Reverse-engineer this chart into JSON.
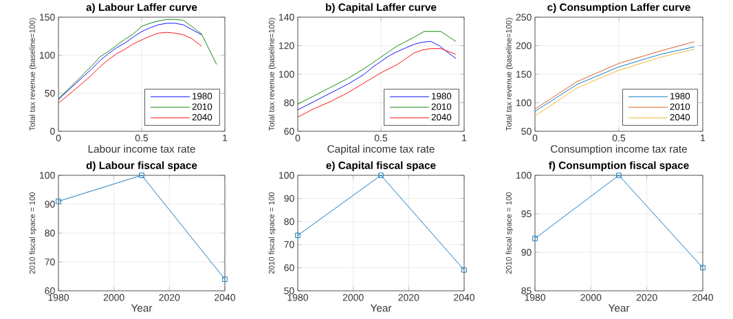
{
  "chart_data": [
    {
      "type": "line",
      "title": "a) Labour Laffer curve",
      "xlabel": "Labour income tax rate",
      "ylabel": "Total tax revenue (baseline=100)",
      "xlim": [
        0,
        1
      ],
      "ylim": [
        0,
        150
      ],
      "xticks": [
        0,
        0.5,
        1
      ],
      "yticks": [
        0,
        50,
        100,
        150
      ],
      "grid": true,
      "legend": "bottom right",
      "series": [
        {
          "name": "1980",
          "color": "#0000ff",
          "x": [
            0,
            0.1,
            0.2,
            0.25,
            0.3,
            0.35,
            0.4,
            0.45,
            0.5,
            0.55,
            0.6,
            0.65,
            0.7,
            0.75,
            0.8,
            0.86
          ],
          "values": [
            42,
            62,
            82,
            93,
            102,
            110,
            116,
            124,
            131,
            136,
            140,
            142,
            142,
            140,
            134,
            127
          ]
        },
        {
          "name": "2010",
          "color": "#008000",
          "x": [
            0,
            0.1,
            0.2,
            0.25,
            0.3,
            0.35,
            0.4,
            0.45,
            0.5,
            0.55,
            0.6,
            0.65,
            0.7,
            0.75,
            0.8,
            0.86,
            0.95
          ],
          "values": [
            43,
            64,
            86,
            98,
            105,
            113,
            121,
            128,
            138,
            142,
            145,
            147,
            147,
            146,
            138,
            128,
            88
          ]
        },
        {
          "name": "2040",
          "color": "#ff0000",
          "x": [
            0,
            0.1,
            0.2,
            0.25,
            0.3,
            0.35,
            0.4,
            0.45,
            0.5,
            0.55,
            0.6,
            0.65,
            0.7,
            0.75,
            0.8,
            0.86
          ],
          "values": [
            37,
            55,
            74,
            85,
            94,
            102,
            108,
            115,
            120,
            125,
            129,
            130,
            129,
            127,
            122,
            112
          ]
        }
      ]
    },
    {
      "type": "line",
      "title": "b) Capital Laffer curve",
      "xlabel": "Capital income tax rate",
      "ylabel": "Total tax revenue (baseline=100)",
      "xlim": [
        0,
        1
      ],
      "ylim": [
        60,
        140
      ],
      "xticks": [
        0,
        0.5,
        1
      ],
      "yticks": [
        60,
        80,
        100,
        120,
        140
      ],
      "grid": true,
      "legend": "bottom right",
      "series": [
        {
          "name": "1980",
          "color": "#0000ff",
          "x": [
            0,
            0.1,
            0.2,
            0.3,
            0.4,
            0.45,
            0.5,
            0.55,
            0.6,
            0.65,
            0.7,
            0.75,
            0.8,
            0.85,
            0.95
          ],
          "values": [
            75,
            81,
            87,
            93,
            100,
            105,
            109,
            113,
            116,
            118.5,
            121,
            122.5,
            123,
            120,
            111
          ]
        },
        {
          "name": "2010",
          "color": "#008000",
          "x": [
            0,
            0.1,
            0.2,
            0.3,
            0.4,
            0.5,
            0.55,
            0.6,
            0.65,
            0.7,
            0.76,
            0.86,
            0.95
          ],
          "values": [
            79,
            85,
            91,
            97,
            104,
            112,
            116,
            120,
            123,
            126,
            130,
            130,
            123
          ]
        },
        {
          "name": "2040",
          "color": "#ff0000",
          "x": [
            0,
            0.1,
            0.2,
            0.3,
            0.4,
            0.5,
            0.55,
            0.6,
            0.65,
            0.7,
            0.75,
            0.8,
            0.86,
            0.95
          ],
          "values": [
            70,
            76,
            81,
            87,
            94,
            101,
            104,
            107,
            111,
            115,
            117,
            118,
            118,
            114
          ]
        }
      ]
    },
    {
      "type": "line",
      "title": "c) Consumption Laffer curve",
      "xlabel": "Consumption income tax rate",
      "ylabel": "Total tax revenue (baseline=100)",
      "xlim": [
        0,
        1
      ],
      "ylim": [
        50,
        250
      ],
      "xticks": [
        0,
        0.5,
        1
      ],
      "yticks": [
        50,
        100,
        150,
        200,
        250
      ],
      "grid": true,
      "legend": "bottom right",
      "series": [
        {
          "name": "1980",
          "color": "#0072bd",
          "x": [
            0,
            0.25,
            0.5,
            0.75,
            0.95
          ],
          "values": [
            85,
            132,
            163,
            185,
            198
          ]
        },
        {
          "name": "2010",
          "color": "#d95319",
          "x": [
            0,
            0.25,
            0.5,
            0.75,
            0.95
          ],
          "values": [
            89,
            137,
            169,
            191,
            207
          ]
        },
        {
          "name": "2040",
          "color": "#edb120",
          "x": [
            0,
            0.25,
            0.5,
            0.75,
            0.95
          ],
          "values": [
            77,
            126,
            157,
            180,
            194
          ]
        }
      ]
    },
    {
      "type": "line",
      "title": "d) Labour fiscal space",
      "xlabel": "Year",
      "ylabel": "2010 fiscal space = 100",
      "xlim": [
        1980,
        2040
      ],
      "ylim": [
        60,
        100
      ],
      "xticks": [
        1980,
        2000,
        2020,
        2040
      ],
      "yticks": [
        60,
        70,
        80,
        90,
        100
      ],
      "grid": true,
      "marker": "square",
      "series": [
        {
          "color": "#0072bd",
          "x": [
            1980,
            2010,
            2040
          ],
          "values": [
            91,
            100,
            64
          ]
        }
      ]
    },
    {
      "type": "line",
      "title": "e) Capital fiscal space",
      "xlabel": "Year",
      "ylabel": "2010 fiscal space = 100",
      "xlim": [
        1980,
        2040
      ],
      "ylim": [
        50,
        100
      ],
      "xticks": [
        1980,
        2000,
        2020,
        2040
      ],
      "yticks": [
        50,
        60,
        70,
        80,
        90,
        100
      ],
      "grid": true,
      "marker": "square",
      "series": [
        {
          "color": "#0072bd",
          "x": [
            1980,
            2010,
            2040
          ],
          "values": [
            74,
            100,
            59
          ]
        }
      ]
    },
    {
      "type": "line",
      "title": "f) Consumption fiscal space",
      "xlabel": "Year",
      "ylabel": "2010 fiscal space = 100",
      "xlim": [
        1980,
        2040
      ],
      "ylim": [
        85,
        100
      ],
      "xticks": [
        1980,
        2000,
        2020,
        2040
      ],
      "yticks": [
        85,
        90,
        95,
        100
      ],
      "grid": true,
      "marker": "square",
      "series": [
        {
          "color": "#0072bd",
          "x": [
            1980,
            2010,
            2040
          ],
          "values": [
            91.8,
            100,
            88
          ]
        }
      ]
    }
  ]
}
